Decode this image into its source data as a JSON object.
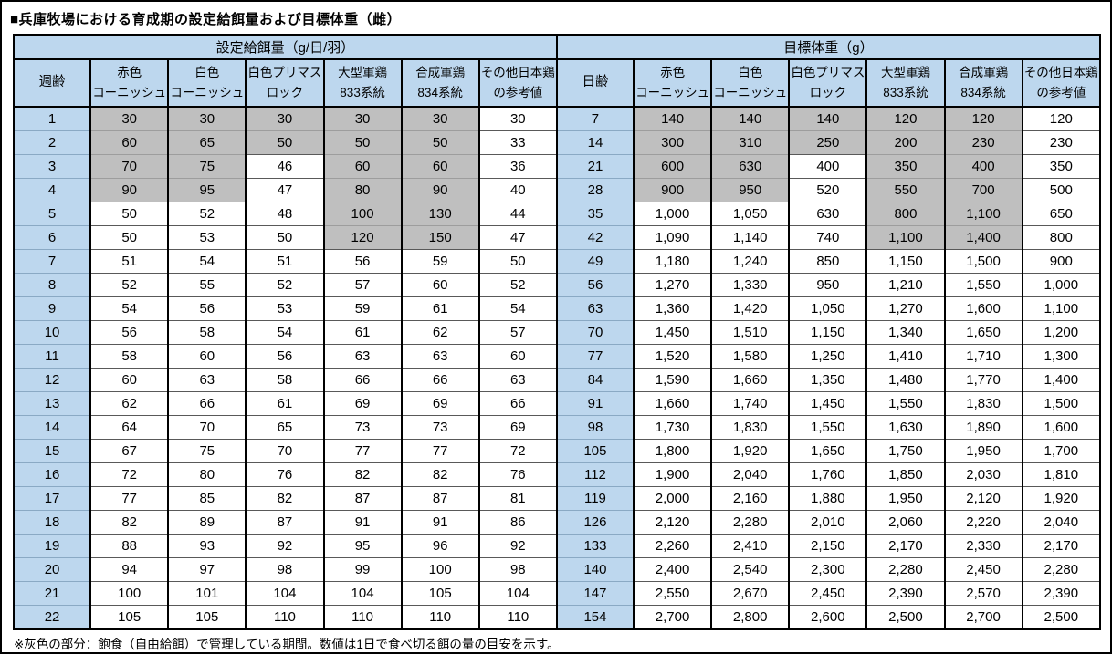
{
  "page": {
    "title": "■兵庫牧場における育成期の設定給餌量および目標体重（雌）",
    "footnote": "※灰色の部分：飽食（自由給餌）で管理している期間。数値は1日で食べ切る餌の量の目安を示す。"
  },
  "colors": {
    "header_blue": "#BDD7EE",
    "adlib_gray": "#BFBFBF",
    "border_black": "#000000"
  },
  "breed_columns": [
    "赤色\nコーニッシュ",
    "白色\nコーニッシュ",
    "白色プリマス\nロック",
    "大型軍鶏\n833系統",
    "合成軍鶏\n834系統",
    "その他日本鶏\nの参考値"
  ],
  "gray_rows_per_column": [
    4,
    4,
    2,
    6,
    6,
    0
  ],
  "feed_table": {
    "group_header": "設定給餌量（g/日/羽）",
    "age_header": "週齢",
    "rows": [
      {
        "age": "1",
        "values": [
          "30",
          "30",
          "30",
          "30",
          "30",
          "30"
        ]
      },
      {
        "age": "2",
        "values": [
          "60",
          "65",
          "50",
          "50",
          "50",
          "33"
        ]
      },
      {
        "age": "3",
        "values": [
          "70",
          "75",
          "46",
          "60",
          "60",
          "36"
        ]
      },
      {
        "age": "4",
        "values": [
          "90",
          "95",
          "47",
          "80",
          "90",
          "40"
        ]
      },
      {
        "age": "5",
        "values": [
          "50",
          "52",
          "48",
          "100",
          "130",
          "44"
        ]
      },
      {
        "age": "6",
        "values": [
          "50",
          "53",
          "50",
          "120",
          "150",
          "47"
        ]
      },
      {
        "age": "7",
        "values": [
          "51",
          "54",
          "51",
          "56",
          "59",
          "50"
        ]
      },
      {
        "age": "8",
        "values": [
          "52",
          "55",
          "52",
          "57",
          "60",
          "52"
        ]
      },
      {
        "age": "9",
        "values": [
          "54",
          "56",
          "53",
          "59",
          "61",
          "54"
        ]
      },
      {
        "age": "10",
        "values": [
          "56",
          "58",
          "54",
          "61",
          "62",
          "57"
        ]
      },
      {
        "age": "11",
        "values": [
          "58",
          "60",
          "56",
          "63",
          "63",
          "60"
        ]
      },
      {
        "age": "12",
        "values": [
          "60",
          "63",
          "58",
          "66",
          "66",
          "63"
        ]
      },
      {
        "age": "13",
        "values": [
          "62",
          "66",
          "61",
          "69",
          "69",
          "66"
        ]
      },
      {
        "age": "14",
        "values": [
          "64",
          "70",
          "65",
          "73",
          "73",
          "69"
        ]
      },
      {
        "age": "15",
        "values": [
          "67",
          "75",
          "70",
          "77",
          "77",
          "72"
        ]
      },
      {
        "age": "16",
        "values": [
          "72",
          "80",
          "76",
          "82",
          "82",
          "76"
        ]
      },
      {
        "age": "17",
        "values": [
          "77",
          "85",
          "82",
          "87",
          "87",
          "81"
        ]
      },
      {
        "age": "18",
        "values": [
          "82",
          "89",
          "87",
          "91",
          "91",
          "86"
        ]
      },
      {
        "age": "19",
        "values": [
          "88",
          "93",
          "92",
          "95",
          "96",
          "92"
        ]
      },
      {
        "age": "20",
        "values": [
          "94",
          "97",
          "98",
          "99",
          "100",
          "98"
        ]
      },
      {
        "age": "21",
        "values": [
          "100",
          "101",
          "104",
          "104",
          "105",
          "104"
        ]
      },
      {
        "age": "22",
        "values": [
          "105",
          "105",
          "110",
          "110",
          "110",
          "110"
        ]
      }
    ]
  },
  "weight_table": {
    "group_header": "目標体重（g）",
    "age_header": "日齢",
    "rows": [
      {
        "age": "7",
        "values": [
          "140",
          "140",
          "140",
          "120",
          "120",
          "120"
        ]
      },
      {
        "age": "14",
        "values": [
          "300",
          "310",
          "250",
          "200",
          "230",
          "230"
        ]
      },
      {
        "age": "21",
        "values": [
          "600",
          "630",
          "400",
          "350",
          "400",
          "350"
        ]
      },
      {
        "age": "28",
        "values": [
          "900",
          "950",
          "520",
          "550",
          "700",
          "500"
        ]
      },
      {
        "age": "35",
        "values": [
          "1,000",
          "1,050",
          "630",
          "800",
          "1,100",
          "650"
        ]
      },
      {
        "age": "42",
        "values": [
          "1,090",
          "1,140",
          "740",
          "1,100",
          "1,400",
          "800"
        ]
      },
      {
        "age": "49",
        "values": [
          "1,180",
          "1,240",
          "850",
          "1,150",
          "1,500",
          "900"
        ]
      },
      {
        "age": "56",
        "values": [
          "1,270",
          "1,330",
          "950",
          "1,210",
          "1,550",
          "1,000"
        ]
      },
      {
        "age": "63",
        "values": [
          "1,360",
          "1,420",
          "1,050",
          "1,270",
          "1,600",
          "1,100"
        ]
      },
      {
        "age": "70",
        "values": [
          "1,450",
          "1,510",
          "1,150",
          "1,340",
          "1,650",
          "1,200"
        ]
      },
      {
        "age": "77",
        "values": [
          "1,520",
          "1,580",
          "1,250",
          "1,410",
          "1,710",
          "1,300"
        ]
      },
      {
        "age": "84",
        "values": [
          "1,590",
          "1,660",
          "1,350",
          "1,480",
          "1,770",
          "1,400"
        ]
      },
      {
        "age": "91",
        "values": [
          "1,660",
          "1,740",
          "1,450",
          "1,550",
          "1,830",
          "1,500"
        ]
      },
      {
        "age": "98",
        "values": [
          "1,730",
          "1,830",
          "1,550",
          "1,630",
          "1,890",
          "1,600"
        ]
      },
      {
        "age": "105",
        "values": [
          "1,800",
          "1,920",
          "1,650",
          "1,750",
          "1,950",
          "1,700"
        ]
      },
      {
        "age": "112",
        "values": [
          "1,900",
          "2,040",
          "1,760",
          "1,850",
          "2,030",
          "1,810"
        ]
      },
      {
        "age": "119",
        "values": [
          "2,000",
          "2,160",
          "1,880",
          "1,950",
          "2,120",
          "1,920"
        ]
      },
      {
        "age": "126",
        "values": [
          "2,120",
          "2,280",
          "2,010",
          "2,060",
          "2,220",
          "2,040"
        ]
      },
      {
        "age": "133",
        "values": [
          "2,260",
          "2,410",
          "2,150",
          "2,170",
          "2,330",
          "2,170"
        ]
      },
      {
        "age": "140",
        "values": [
          "2,400",
          "2,540",
          "2,300",
          "2,280",
          "2,450",
          "2,280"
        ]
      },
      {
        "age": "147",
        "values": [
          "2,550",
          "2,670",
          "2,450",
          "2,390",
          "2,570",
          "2,390"
        ]
      },
      {
        "age": "154",
        "values": [
          "2,700",
          "2,800",
          "2,600",
          "2,500",
          "2,700",
          "2,500"
        ]
      }
    ]
  }
}
